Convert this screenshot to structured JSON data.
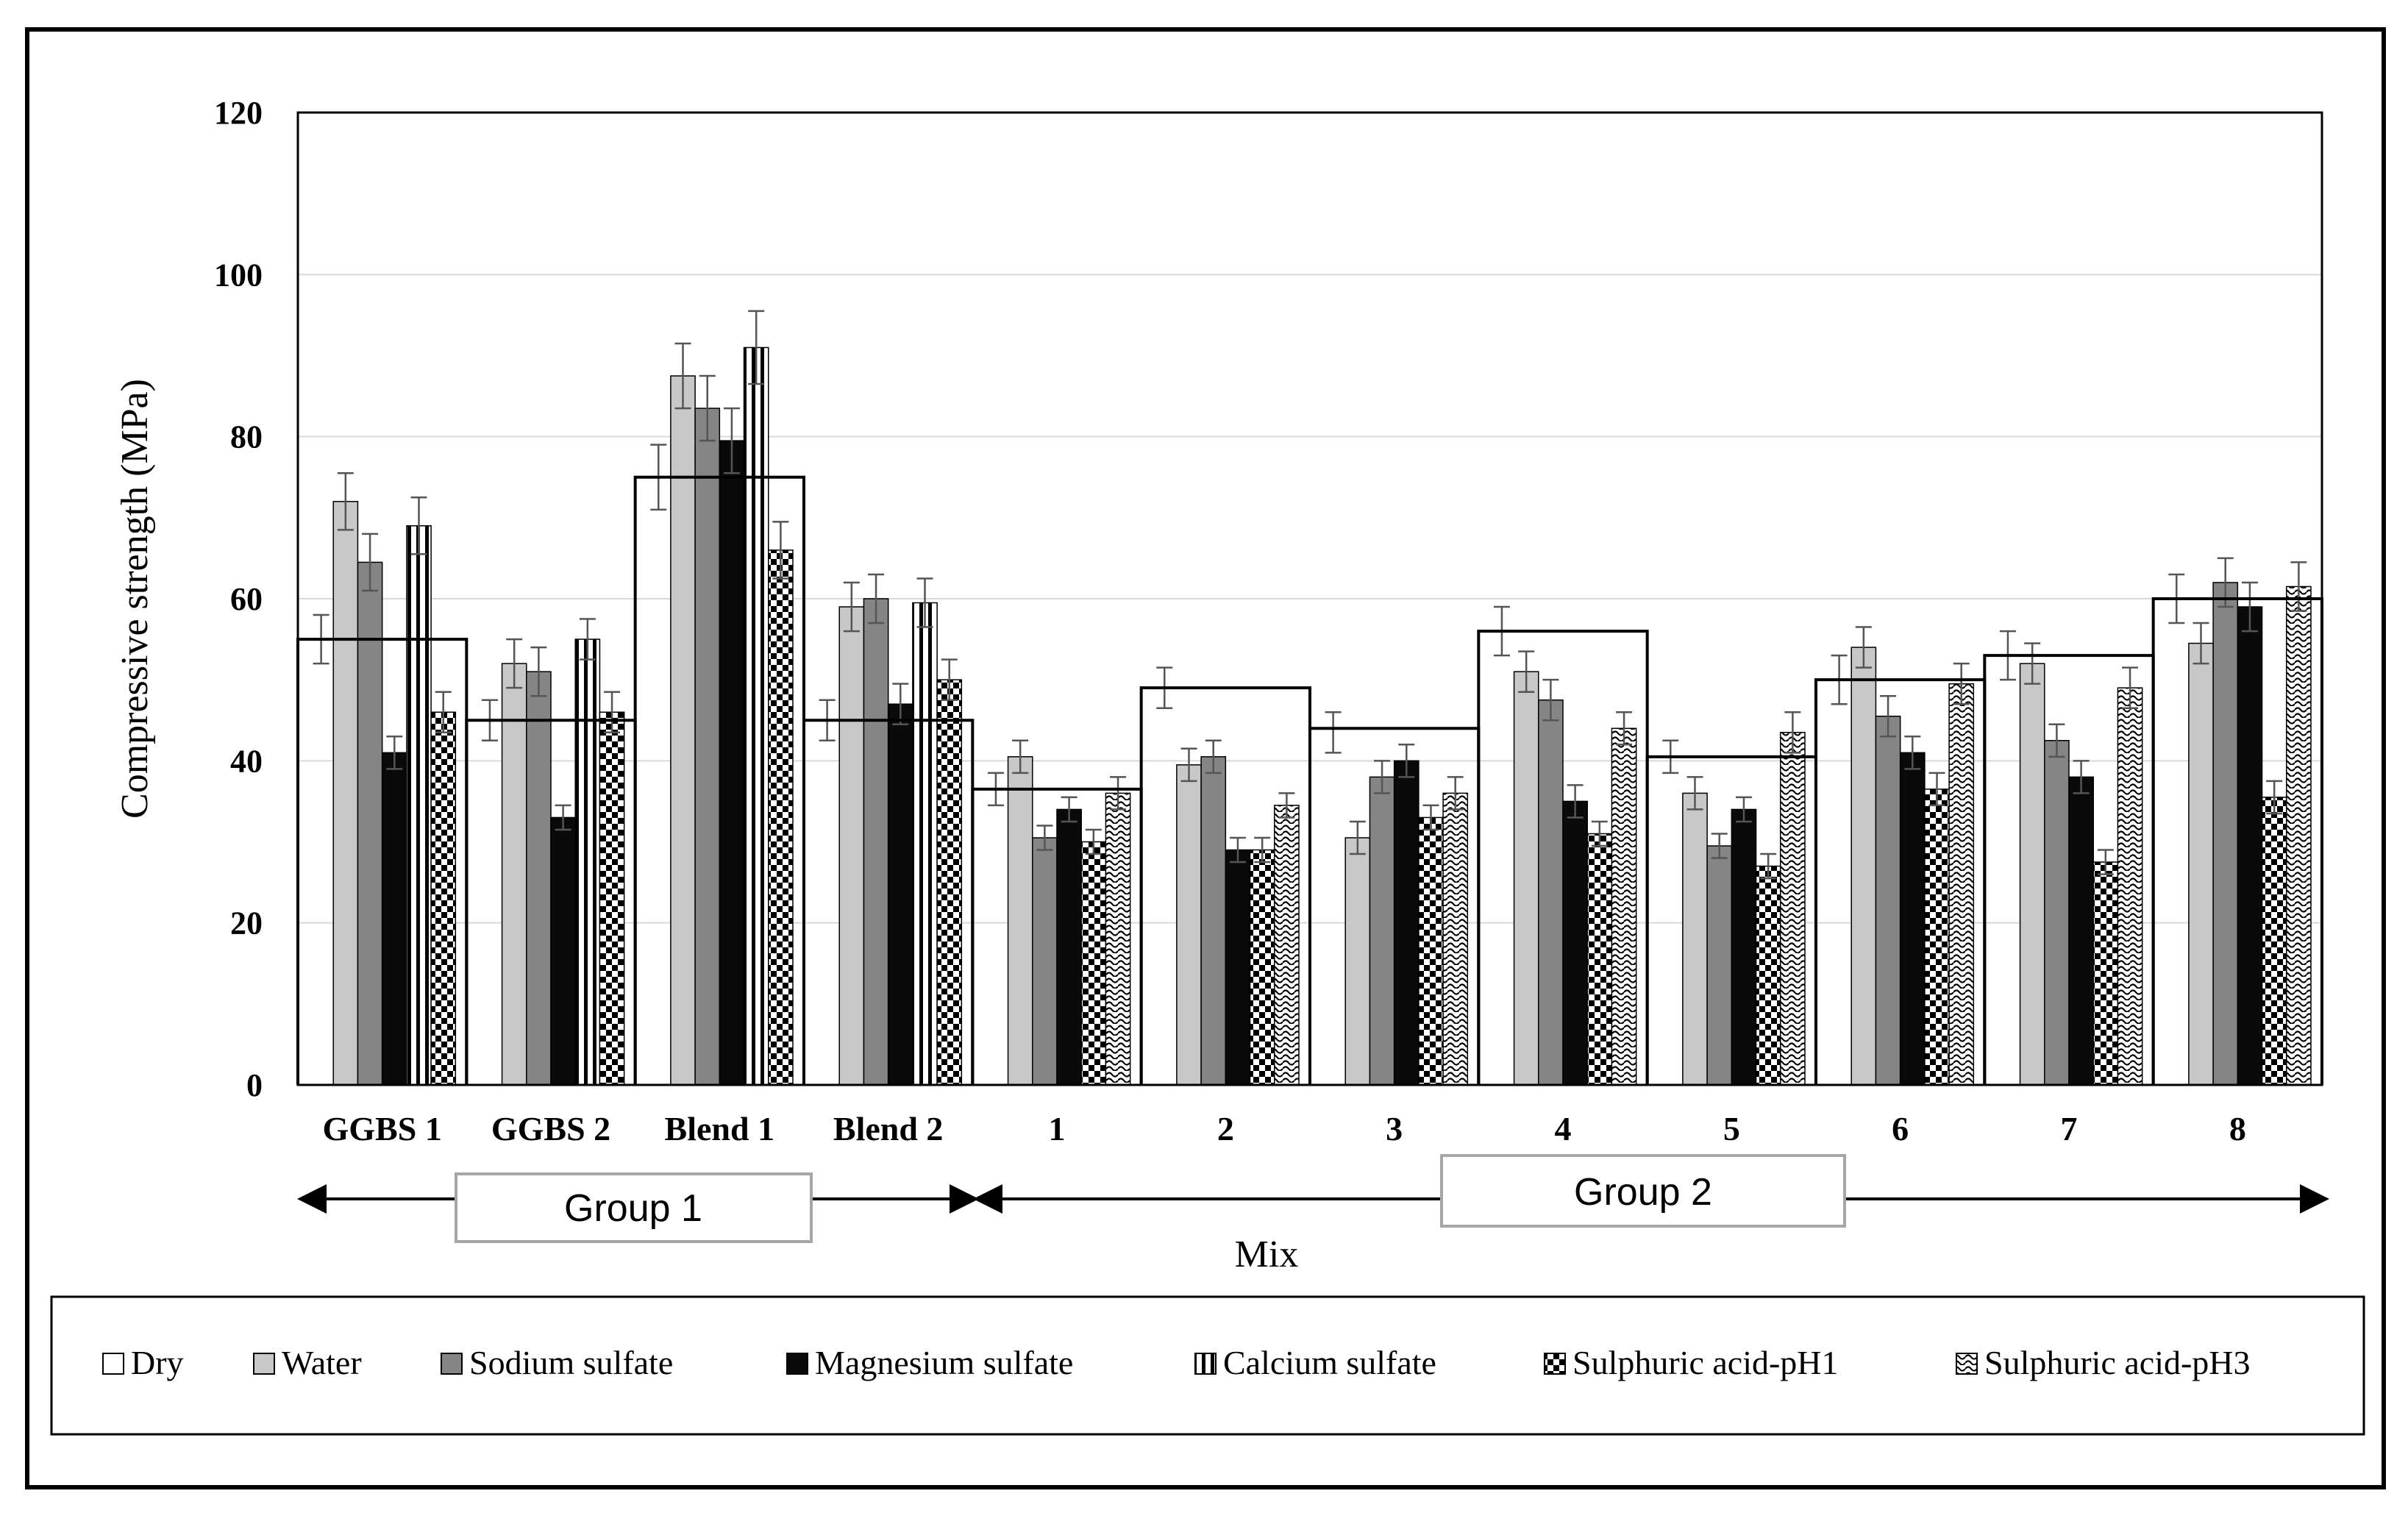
{
  "chart_data": {
    "type": "bar",
    "title": "",
    "xlabel": "Mix",
    "ylabel": "Compressive strength (MPa)",
    "ylim": [
      0,
      120
    ],
    "yticks": [
      "0",
      "20",
      "40",
      "60",
      "80",
      "100",
      "120"
    ],
    "grid": true,
    "categories": [
      "GGBS 1",
      "GGBS 2",
      "Blend 1",
      "Blend 2",
      "1",
      "2",
      "3",
      "4",
      "5",
      "6",
      "7",
      "8"
    ],
    "series": [
      {
        "name": "Dry",
        "values": [
          55,
          45,
          75,
          45,
          36.5,
          49,
          43.5,
          56,
          40.5,
          50,
          53,
          60
        ],
        "errors": [
          3,
          2.5,
          4,
          2.5,
          2,
          2.5,
          2.5,
          3,
          2,
          3,
          3,
          3
        ]
      },
      {
        "name": "Water",
        "values": [
          72,
          52,
          87.5,
          59,
          40.5,
          39.5,
          30.5,
          51,
          36,
          54,
          52,
          54.5
        ],
        "errors": [
          3.5,
          3,
          4,
          3,
          2,
          2,
          2,
          2.5,
          2,
          2.5,
          2.5,
          2.5
        ]
      },
      {
        "name": "Sodium sulfate",
        "values": [
          64.5,
          51,
          83.5,
          60,
          30.5,
          40.5,
          38,
          47.5,
          29.5,
          45.5,
          42.5,
          62
        ],
        "errors": [
          3.5,
          3,
          4,
          3,
          1.5,
          2,
          2,
          2.5,
          1.5,
          2.5,
          2,
          3
        ]
      },
      {
        "name": "Magnesium sulfate",
        "values": [
          41,
          33,
          79.5,
          47,
          34,
          29,
          40,
          35,
          34,
          41,
          38,
          59
        ],
        "errors": [
          2,
          1.5,
          4,
          2.5,
          1.5,
          1.5,
          2,
          2,
          1.5,
          2,
          2,
          3
        ]
      },
      {
        "name": "Calcium sulfate",
        "values": [
          69,
          55,
          91,
          59.5,
          null,
          null,
          null,
          null,
          null,
          null,
          null,
          null
        ],
        "errors": [
          3.5,
          2.5,
          4.5,
          3,
          null,
          null,
          null,
          null,
          null,
          null,
          null,
          null
        ]
      },
      {
        "name": "Sulphuric acid-pH1",
        "values": [
          46,
          46,
          66,
          50,
          30,
          29,
          33,
          31,
          27,
          36.5,
          27.5,
          35.5
        ],
        "errors": [
          2.5,
          2.5,
          3.5,
          2.5,
          1.5,
          1.5,
          1.5,
          1.5,
          1.5,
          2,
          1.5,
          2
        ]
      },
      {
        "name": "Sulphuric acid-pH3",
        "values": [
          null,
          null,
          null,
          null,
          36,
          34.5,
          36,
          44,
          43.5,
          49.5,
          49,
          61.5
        ],
        "errors": [
          null,
          null,
          null,
          null,
          2,
          1.5,
          2,
          2,
          2.5,
          2.5,
          2.5,
          3
        ]
      }
    ],
    "group_mean_lines": [
      55,
      45,
      75,
      45,
      36.5,
      49,
      44,
      56,
      40.5,
      50,
      53,
      60
    ],
    "groups": [
      {
        "label": "Group 1",
        "categories": [
          "GGBS 1",
          "GGBS 2",
          "Blend 1",
          "Blend 2"
        ]
      },
      {
        "label": "Group 2",
        "categories": [
          "1",
          "2",
          "3",
          "4",
          "5",
          "6",
          "7",
          "8"
        ]
      }
    ],
    "legend_position": "bottom"
  },
  "colors": {
    "Dry": "#ffffff",
    "Water": "#c8c8c8",
    "Sodium sulfate": "#858585",
    "Magnesium sulfate": "#0a0a0a",
    "outline": "#000000",
    "grid": "#d9d9d9",
    "group_box_border": "#a6a6a6"
  }
}
